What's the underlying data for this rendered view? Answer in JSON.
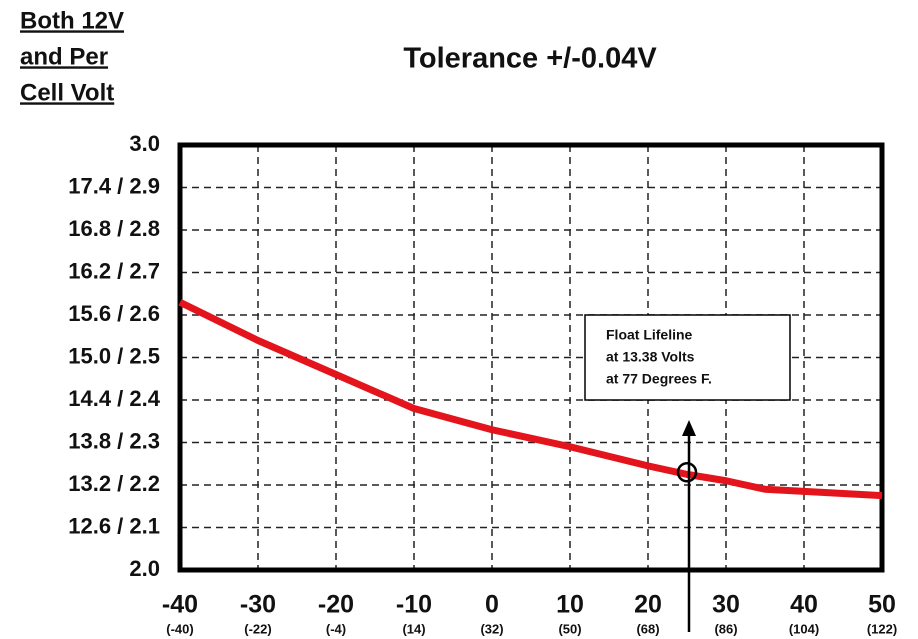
{
  "chart_data": {
    "type": "line",
    "title": "Tolerance +/-0.04V",
    "y_label_lines": [
      "Both 12V",
      "and Per",
      "Cell Volt"
    ],
    "x": [
      -40,
      -30,
      -20,
      -10,
      0,
      10,
      20,
      25,
      30,
      35,
      40,
      50
    ],
    "series": [
      {
        "color": "#e3141c",
        "values": [
          2.63,
          2.54,
          2.46,
          2.38,
          2.33,
          2.29,
          2.245,
          2.225,
          2.21,
          2.19,
          2.185,
          2.175
        ]
      }
    ],
    "xlim": [
      -40,
      50
    ],
    "xticks": [
      -40,
      -30,
      -20,
      -10,
      0,
      10,
      20,
      30,
      40,
      50
    ],
    "xtick_sublabels": [
      "(-40)",
      "(-22)",
      "(-4)",
      "(14)",
      "(32)",
      "(50)",
      "(68)",
      "(86)",
      "(104)",
      "(122)"
    ],
    "ylim": [
      2.0,
      3.0
    ],
    "yticks": [
      {
        "value": 2.0,
        "label": "2.0"
      },
      {
        "value": 2.1,
        "label": "12.6 / 2.1"
      },
      {
        "value": 2.2,
        "label": "13.2 / 2.2"
      },
      {
        "value": 2.3,
        "label": "13.8 / 2.3"
      },
      {
        "value": 2.4,
        "label": "14.4 / 2.4"
      },
      {
        "value": 2.5,
        "label": "15.0 / 2.5"
      },
      {
        "value": 2.6,
        "label": "15.6 / 2.6"
      },
      {
        "value": 2.7,
        "label": "16.2 / 2.7"
      },
      {
        "value": 2.8,
        "label": "16.8 / 2.8"
      },
      {
        "value": 2.9,
        "label": "17.4 / 2.9"
      },
      {
        "value": 3.0,
        "label": "3.0"
      }
    ],
    "grid": true,
    "annotation": {
      "lines": [
        "Float Lifeline",
        "at 13.38 Volts",
        "at 77 Degrees F."
      ],
      "x": 25,
      "y": 2.23
    }
  }
}
